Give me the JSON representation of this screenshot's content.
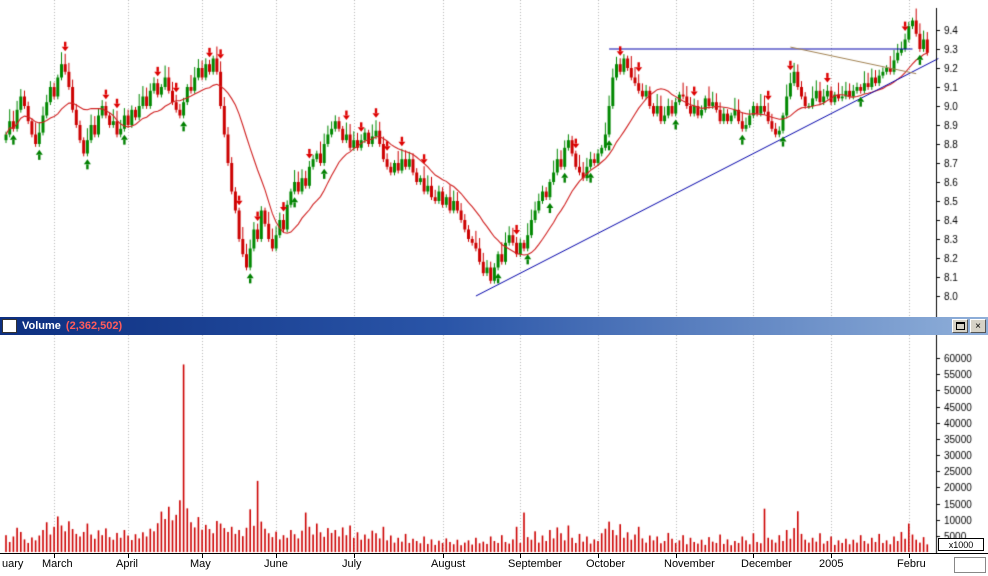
{
  "titlebar": {
    "title": "Volume",
    "value": "(2,362,502)",
    "icons": {
      "close": "×"
    }
  },
  "chart_data": [
    {
      "type": "candlestick",
      "name": "price",
      "ylabel_side": "right",
      "ylim": [
        7.95,
        9.55
      ],
      "y_ticks": [
        9.4,
        9.3,
        9.2,
        9.1,
        9.0,
        8.9,
        8.8,
        8.7,
        8.6,
        8.5,
        8.4,
        8.3,
        8.2,
        8.1,
        8.0
      ],
      "ma_period": 15,
      "grid": "vertical-dotted-monthly",
      "colors": {
        "up": "#008800",
        "down": "#cc0000",
        "ma": "#d02020",
        "grid": "#b8b8b8"
      },
      "months": [
        {
          "label": "uary",
          "day": 0
        },
        {
          "label": "March",
          "day": 13
        },
        {
          "label": "April",
          "day": 33
        },
        {
          "label": "May",
          "day": 53
        },
        {
          "label": "June",
          "day": 73
        },
        {
          "label": "July",
          "day": 94
        },
        {
          "label": "August",
          "day": 118
        },
        {
          "label": "September",
          "day": 139
        },
        {
          "label": "October",
          "day": 160
        },
        {
          "label": "November",
          "day": 181
        },
        {
          "label": "December",
          "day": 202
        },
        {
          "label": "2005",
          "day": 223
        },
        {
          "label": "Febru",
          "day": 244
        }
      ],
      "closes": [
        8.85,
        8.92,
        8.88,
        8.98,
        9.05,
        9.0,
        8.92,
        8.85,
        8.8,
        8.86,
        8.95,
        9.02,
        9.1,
        9.05,
        9.15,
        9.22,
        9.18,
        9.1,
        8.98,
        8.9,
        8.82,
        8.75,
        8.82,
        8.9,
        8.85,
        8.95,
        9.0,
        8.95,
        8.9,
        8.92,
        8.85,
        8.88,
        8.95,
        8.9,
        8.98,
        8.94,
        9.0,
        9.05,
        9.0,
        9.08,
        9.12,
        9.06,
        9.1,
        9.15,
        9.08,
        9.02,
        8.98,
        8.95,
        9.02,
        9.1,
        9.08,
        9.15,
        9.2,
        9.15,
        9.22,
        9.18,
        9.25,
        9.18,
        9.0,
        8.85,
        8.7,
        8.55,
        8.45,
        8.3,
        8.22,
        8.15,
        8.25,
        8.35,
        8.3,
        8.45,
        8.38,
        8.3,
        8.25,
        8.32,
        8.4,
        8.35,
        8.48,
        8.55,
        8.6,
        8.55,
        8.62,
        8.58,
        8.68,
        8.72,
        8.75,
        8.7,
        8.8,
        8.85,
        8.88,
        8.92,
        8.88,
        8.82,
        8.85,
        8.78,
        8.82,
        8.78,
        8.82,
        8.86,
        8.8,
        8.84,
        8.87,
        8.8,
        8.72,
        8.68,
        8.65,
        8.7,
        8.66,
        8.72,
        8.68,
        8.72,
        8.65,
        8.6,
        8.62,
        8.55,
        8.58,
        8.52,
        8.5,
        8.55,
        8.48,
        8.52,
        8.45,
        8.5,
        8.45,
        8.4,
        8.35,
        8.3,
        8.28,
        8.25,
        8.18,
        8.12,
        8.15,
        8.08,
        8.15,
        8.22,
        8.18,
        8.28,
        8.32,
        8.28,
        8.22,
        8.28,
        8.25,
        8.32,
        8.4,
        8.45,
        8.5,
        8.55,
        8.52,
        8.6,
        8.65,
        8.72,
        8.68,
        8.78,
        8.82,
        8.75,
        8.68,
        8.65,
        8.62,
        8.68,
        8.72,
        8.7,
        8.75,
        8.78,
        8.85,
        9.0,
        9.15,
        9.22,
        9.18,
        9.25,
        9.2,
        9.15,
        9.12,
        9.08,
        9.05,
        9.08,
        9.0,
        8.96,
        9.0,
        8.92,
        8.95,
        9.0,
        8.96,
        9.02,
        9.06,
        9.05,
        9.0,
        8.96,
        9.0,
        8.95,
        8.98,
        9.04,
        9.0,
        9.02,
        8.98,
        8.92,
        8.96,
        8.92,
        8.95,
        8.98,
        8.92,
        8.88,
        8.9,
        8.95,
        9.0,
        8.96,
        9.0,
        8.97,
        8.92,
        8.88,
        8.85,
        8.87,
        8.95,
        9.05,
        9.12,
        9.18,
        9.1,
        9.05,
        9.0,
        9.0,
        9.04,
        9.08,
        9.02,
        9.05,
        9.08,
        9.02,
        9.06,
        9.04,
        9.05,
        9.08,
        9.05,
        9.08,
        9.1,
        9.08,
        9.12,
        9.1,
        9.15,
        9.12,
        9.16,
        9.18,
        9.2,
        9.18,
        9.24,
        9.28,
        9.3,
        9.35,
        9.42,
        9.45,
        9.38,
        9.3,
        9.35,
        9.28
      ],
      "signals": {
        "buy_days": [
          2,
          9,
          22,
          32,
          48,
          66,
          78,
          86,
          133,
          141,
          147,
          151,
          158,
          163,
          181,
          199,
          210,
          231,
          247
        ],
        "sell_days": [
          16,
          27,
          30,
          41,
          46,
          55,
          58,
          63,
          68,
          75,
          82,
          92,
          96,
          100,
          103,
          107,
          113,
          138,
          154,
          166,
          171,
          186,
          206,
          212,
          222,
          243
        ]
      },
      "trendlines": [
        {
          "from_day": 127,
          "to_day": 252,
          "from_price": 8.0,
          "to_price": 9.25,
          "color": "#0000aa"
        },
        {
          "from_day": 163,
          "to_day": 245,
          "from_price": 9.3,
          "to_price": 9.3,
          "color": "#0000aa"
        },
        {
          "from_day": 212,
          "to_day": 246,
          "from_price": 9.31,
          "to_price": 9.17,
          "color": "#a08050"
        }
      ]
    },
    {
      "type": "bar",
      "name": "volume",
      "ylim": [
        0,
        62000
      ],
      "y_ticks": [
        60000,
        55000,
        50000,
        45000,
        40000,
        35000,
        30000,
        25000,
        20000,
        15000,
        10000,
        5000
      ],
      "unit_label": "x1000",
      "bar_color": "#cc0000",
      "values": [
        5200,
        3100,
        4800,
        7500,
        6200,
        3900,
        2800,
        4500,
        3600,
        5100,
        6800,
        9200,
        5400,
        7800,
        11000,
        8200,
        6400,
        9500,
        7100,
        5600,
        4800,
        6200,
        8800,
        5400,
        4100,
        6700,
        5200,
        7300,
        4600,
        3800,
        5900,
        4400,
        6800,
        5100,
        3700,
        5500,
        4200,
        6100,
        4800,
        7200,
        6400,
        8900,
        12500,
        10200,
        14000,
        9800,
        11500,
        16000,
        58000,
        13500,
        9200,
        7600,
        10800,
        6900,
        8400,
        7100,
        5800,
        9600,
        8800,
        7400,
        6200,
        7800,
        5600,
        6800,
        4900,
        7500,
        13200,
        8100,
        22000,
        9400,
        7200,
        5800,
        4600,
        6300,
        3900,
        5200,
        4400,
        6800,
        5500,
        4200,
        6600,
        12200,
        7800,
        5400,
        8800,
        6100,
        4700,
        7400,
        5900,
        6800,
        4800,
        7600,
        5200,
        8200,
        4400,
        6100,
        3800,
        5400,
        4100,
        6600,
        5800,
        4200,
        7800,
        3600,
        5100,
        2900,
        4400,
        3200,
        5600,
        2800,
        4100,
        3400,
        2700,
        4800,
        2500,
        3900,
        2200,
        3500,
        2800,
        4200,
        3100,
        2400,
        3800,
        2100,
        2900,
        3600,
        2300,
        4400,
        2700,
        3200,
        2500,
        4800,
        3400,
        2800,
        5200,
        3100,
        2600,
        3900,
        7800,
        2800,
        12200,
        4600,
        3800,
        6400,
        2900,
        5100,
        3400,
        6800,
        4200,
        7600,
        5800,
        3600,
        8200,
        4400,
        2800,
        5600,
        3200,
        4800,
        2600,
        3900,
        3400,
        5800,
        7200,
        9400,
        6800,
        5200,
        8600,
        4400,
        6100,
        3800,
        5400,
        7800,
        4200,
        2900,
        5100,
        3600,
        4800,
        2700,
        3400,
        5900,
        4100,
        2800,
        3600,
        5200,
        2400,
        4400,
        3100,
        2600,
        3800,
        2200,
        4600,
        3200,
        2800,
        5400,
        2500,
        3900,
        2100,
        3400,
        2800,
        4800,
        3600,
        2400,
        5800,
        3100,
        2700,
        13400,
        4400,
        3800,
        2900,
        5200,
        3400,
        6800,
        4100,
        7400,
        12600,
        5600,
        3800,
        2900,
        4400,
        3200,
        5800,
        2600,
        3400,
        4800,
        2200,
        3600,
        2800,
        4100,
        2400,
        3800,
        2900,
        5200,
        3400,
        2600,
        4400,
        3100,
        5600,
        2800,
        3600,
        2400,
        4800,
        3400,
        6200,
        4100,
        8800,
        5400,
        3800,
        2900,
        4600,
        2362
      ]
    }
  ]
}
